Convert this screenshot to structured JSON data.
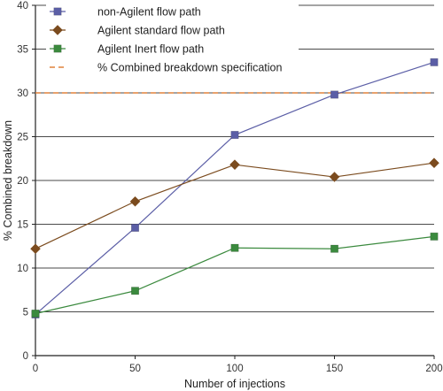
{
  "chart_data": {
    "type": "line",
    "title": "",
    "xlabel": "Number of injections",
    "ylabel": "% Combined breakdown",
    "xlim": [
      0,
      200
    ],
    "ylim": [
      0,
      40
    ],
    "xticks": [
      0,
      50,
      100,
      150,
      200
    ],
    "yticks": [
      0,
      5,
      10,
      15,
      20,
      25,
      30,
      35,
      40
    ],
    "grid": "horizontal",
    "legend_position": "top",
    "series": [
      {
        "name": "non-Agilent flow path",
        "marker": "square",
        "color": "#5b5ea6",
        "x": [
          0,
          50,
          100,
          150,
          200
        ],
        "y": [
          4.7,
          14.6,
          25.2,
          29.8,
          33.5
        ]
      },
      {
        "name": "Agilent standard flow path",
        "marker": "diamond",
        "color": "#7b4b1e",
        "x": [
          0,
          50,
          100,
          150,
          200
        ],
        "y": [
          12.2,
          17.6,
          21.8,
          20.4,
          22.0
        ]
      },
      {
        "name": "Agilent Inert flow path",
        "marker": "square",
        "color": "#3b8a3e",
        "x": [
          0,
          50,
          100,
          150,
          200
        ],
        "y": [
          4.8,
          7.4,
          12.3,
          12.2,
          13.6
        ]
      }
    ],
    "reference_line": {
      "name": "% Combined breakdown specification",
      "y": 30,
      "color": "#e0823c",
      "style": "dashed"
    }
  }
}
